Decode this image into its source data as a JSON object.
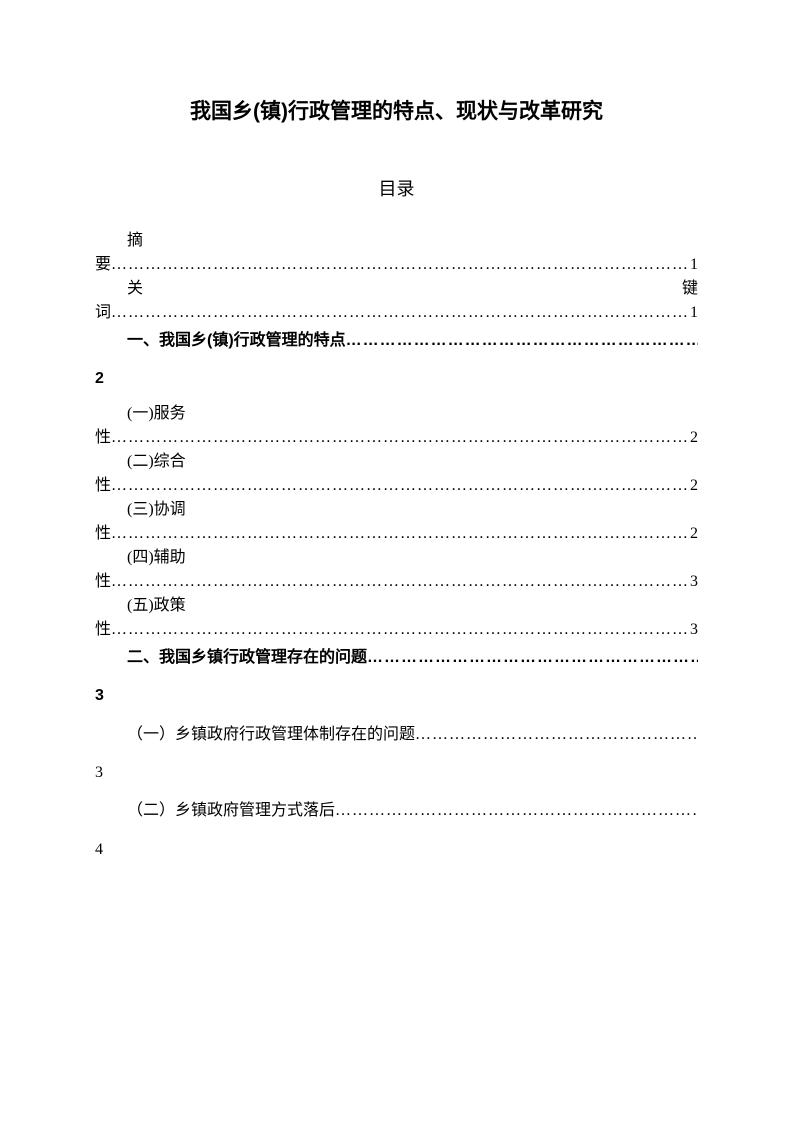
{
  "title": "我国乡(镇)行政管理的特点、现状与改革研究",
  "toc_heading": "目录",
  "entries": [
    {
      "prefix": "摘",
      "wrap": "要",
      "page": "1",
      "bold": false,
      "spread": false
    },
    {
      "prefix": "关",
      "suffix": "键",
      "wrap": "词",
      "page": "1",
      "bold": false,
      "spread": true
    },
    {
      "prefix": "一、我国乡(镇)行政管理的特点",
      "wrapnum": "2",
      "bold": true,
      "inline_right": true
    },
    {
      "prefix": "(一)服务",
      "wrap": "性",
      "page": "2",
      "bold": false,
      "spread": false
    },
    {
      "prefix": "(二)综合",
      "wrap": "性",
      "page": "2",
      "bold": false,
      "spread": false
    },
    {
      "prefix": "(三)协调",
      "wrap": "性",
      "page": "2",
      "bold": false,
      "spread": false
    },
    {
      "prefix": "(四)辅助",
      "wrap": "性",
      "page": "3",
      "bold": false,
      "spread": false
    },
    {
      "prefix": "(五)政策",
      "wrap": "性",
      "page": "3",
      "bold": false,
      "spread": false
    },
    {
      "prefix": "二、我国乡镇行政管理存在的问题",
      "wrapnum": "3",
      "bold": true,
      "inline_right": true
    },
    {
      "prefix": "（一）乡镇政府行政管理体制存在的问题",
      "wrapnum": "3",
      "bold": false,
      "inline_right": true
    },
    {
      "prefix": "（二）乡镇政府管理方式落后",
      "wrapnum": "4",
      "bold": false,
      "inline_right": true
    }
  ],
  "dots": "…………………………………………………………………………………………………………………………"
}
